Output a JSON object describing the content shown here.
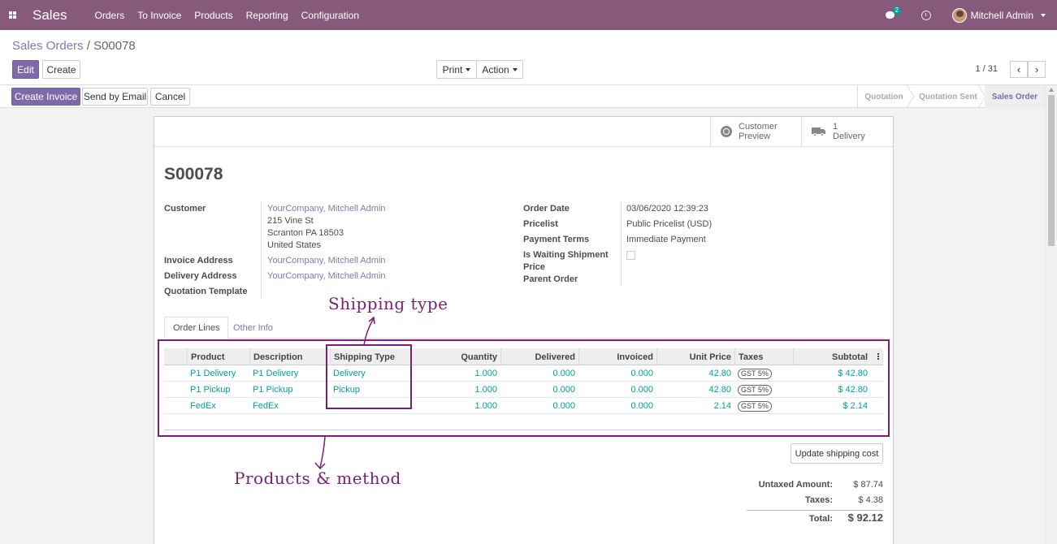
{
  "navbar": {
    "app_name": "Sales",
    "menu": [
      "Orders",
      "To Invoice",
      "Products",
      "Reporting",
      "Configuration"
    ],
    "chat_count": "2",
    "user_name": "Mitchell Admin",
    "color": "#875a7b"
  },
  "breadcrumb": {
    "parent": "Sales Orders",
    "separator": "/",
    "current": "S00078"
  },
  "toolbar": {
    "edit": "Edit",
    "create": "Create",
    "print": "Print",
    "action": "Action"
  },
  "pager": {
    "value": "1 / 31",
    "prev": "‹",
    "next": "›"
  },
  "statusbar": {
    "buttons": {
      "create_invoice": "Create Invoice",
      "send_email": "Send by Email",
      "cancel": "Cancel"
    },
    "stages": [
      "Quotation",
      "Quotation Sent",
      "Sales Order"
    ],
    "active_stage": "Sales Order"
  },
  "smart_buttons": {
    "customer_preview": [
      "Customer",
      "Preview"
    ],
    "delivery": [
      "1",
      "Delivery"
    ]
  },
  "order": {
    "name": "S00078",
    "labels": {
      "customer": "Customer",
      "invoice_address": "Invoice Address",
      "delivery_address": "Delivery Address",
      "quotation_template": "Quotation Template",
      "order_date": "Order Date",
      "pricelist": "Pricelist",
      "payment_terms": "Payment Terms",
      "waiting_shipment_1": "Is Waiting Shipment",
      "waiting_shipment_2": "Price",
      "parent_order": "Parent Order"
    },
    "customer": "YourCompany, Mitchell Admin",
    "address": [
      "215 Vine St",
      "Scranton PA 18503",
      "United States"
    ],
    "invoice_address": "YourCompany, Mitchell Admin",
    "delivery_address": "YourCompany, Mitchell Admin",
    "order_date": "03/06/2020 12:39:23",
    "pricelist": "Public Pricelist (USD)",
    "payment_terms": "Immediate Payment"
  },
  "tabs": [
    "Order Lines",
    "Other Info"
  ],
  "table": {
    "headers": [
      "Product",
      "Description",
      "Shipping Type",
      "Quantity",
      "Delivered",
      "Invoiced",
      "Unit Price",
      "Taxes",
      "Subtotal"
    ],
    "rows": [
      {
        "product": "P1 Delivery",
        "description": "P1 Delivery",
        "shipping_type": "Delivery",
        "quantity": "1.000",
        "delivered": "0.000",
        "invoiced": "0.000",
        "unit_price": "42.80",
        "taxes": "GST 5%",
        "subtotal": "$ 42.80"
      },
      {
        "product": "P1 Pickup",
        "description": "P1 Pickup",
        "shipping_type": "Pickup",
        "quantity": "1.000",
        "delivered": "0.000",
        "invoiced": "0.000",
        "unit_price": "42.80",
        "taxes": "GST 5%",
        "subtotal": "$ 42.80"
      },
      {
        "product": "FedEx",
        "description": "FedEx",
        "shipping_type": "",
        "quantity": "1.000",
        "delivered": "0.000",
        "invoiced": "0.000",
        "unit_price": "2.14",
        "taxes": "GST 5%",
        "subtotal": "$ 2.14"
      }
    ]
  },
  "annotations": {
    "shipping_type": "Shipping  type",
    "products_method": "Products  &  method",
    "color": "#7b1f74"
  },
  "totals": {
    "update_shipping": "Update shipping cost",
    "untaxed_label": "Untaxed Amount:",
    "untaxed": "$ 87.74",
    "taxes_label": "Taxes:",
    "taxes": "$ 4.38",
    "total_label": "Total:",
    "total": "$ 92.12"
  }
}
